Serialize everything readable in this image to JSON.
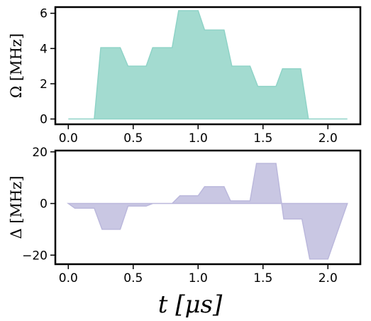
{
  "chart_data": [
    {
      "type": "area",
      "ylabel": "Ω [MHz]",
      "xlim": [
        -0.1,
        2.25
      ],
      "ylim": [
        -0.3,
        6.35
      ],
      "xticks": [
        0.0,
        0.5,
        1.0,
        1.5,
        2.0
      ],
      "xtick_labels": [
        "0.0",
        "0.5",
        "1.0",
        "1.5",
        "2.0"
      ],
      "yticks": [
        0,
        2,
        4,
        6
      ],
      "ytick_labels": [
        "0",
        "2",
        "4",
        "6"
      ],
      "color": "#a3dbd0",
      "edge_color": "#8fd3c7",
      "x": [
        0.0,
        0.2,
        0.25,
        0.4,
        0.46,
        0.6,
        0.65,
        0.8,
        0.85,
        1.0,
        1.05,
        1.2,
        1.26,
        1.4,
        1.46,
        1.6,
        1.65,
        1.79,
        1.85,
        2.15
      ],
      "y": [
        0.0,
        0.0,
        4.05,
        4.05,
        3.0,
        3.0,
        4.05,
        4.05,
        6.15,
        6.15,
        5.05,
        5.05,
        3.0,
        3.0,
        1.85,
        1.85,
        2.85,
        2.85,
        0.0,
        0.0
      ]
    },
    {
      "type": "area",
      "ylabel": "Δ [MHz]",
      "xlabel": "t [μs]",
      "xlim": [
        -0.1,
        2.25
      ],
      "ylim": [
        -23.5,
        20.5
      ],
      "xticks": [
        0.0,
        0.5,
        1.0,
        1.5,
        2.0
      ],
      "xtick_labels": [
        "0.0",
        "0.5",
        "1.0",
        "1.5",
        "2.0"
      ],
      "yticks": [
        -20,
        0,
        20
      ],
      "ytick_labels": [
        "−20",
        "0",
        "20"
      ],
      "color": "#c9c7e3",
      "edge_color": "#bbb8dc",
      "x": [
        0.0,
        0.05,
        0.2,
        0.26,
        0.4,
        0.46,
        0.6,
        0.65,
        0.8,
        0.86,
        1.0,
        1.05,
        1.2,
        1.25,
        1.4,
        1.45,
        1.6,
        1.66,
        1.8,
        1.86,
        2.0,
        2.15
      ],
      "y": [
        0.0,
        -1.8,
        -1.8,
        -10.0,
        -10.0,
        -1.0,
        -1.0,
        0.0,
        0.0,
        3.0,
        3.0,
        6.5,
        6.5,
        1.0,
        1.0,
        15.5,
        15.5,
        -6.0,
        -6.0,
        -21.5,
        -21.5,
        0.0
      ]
    }
  ]
}
